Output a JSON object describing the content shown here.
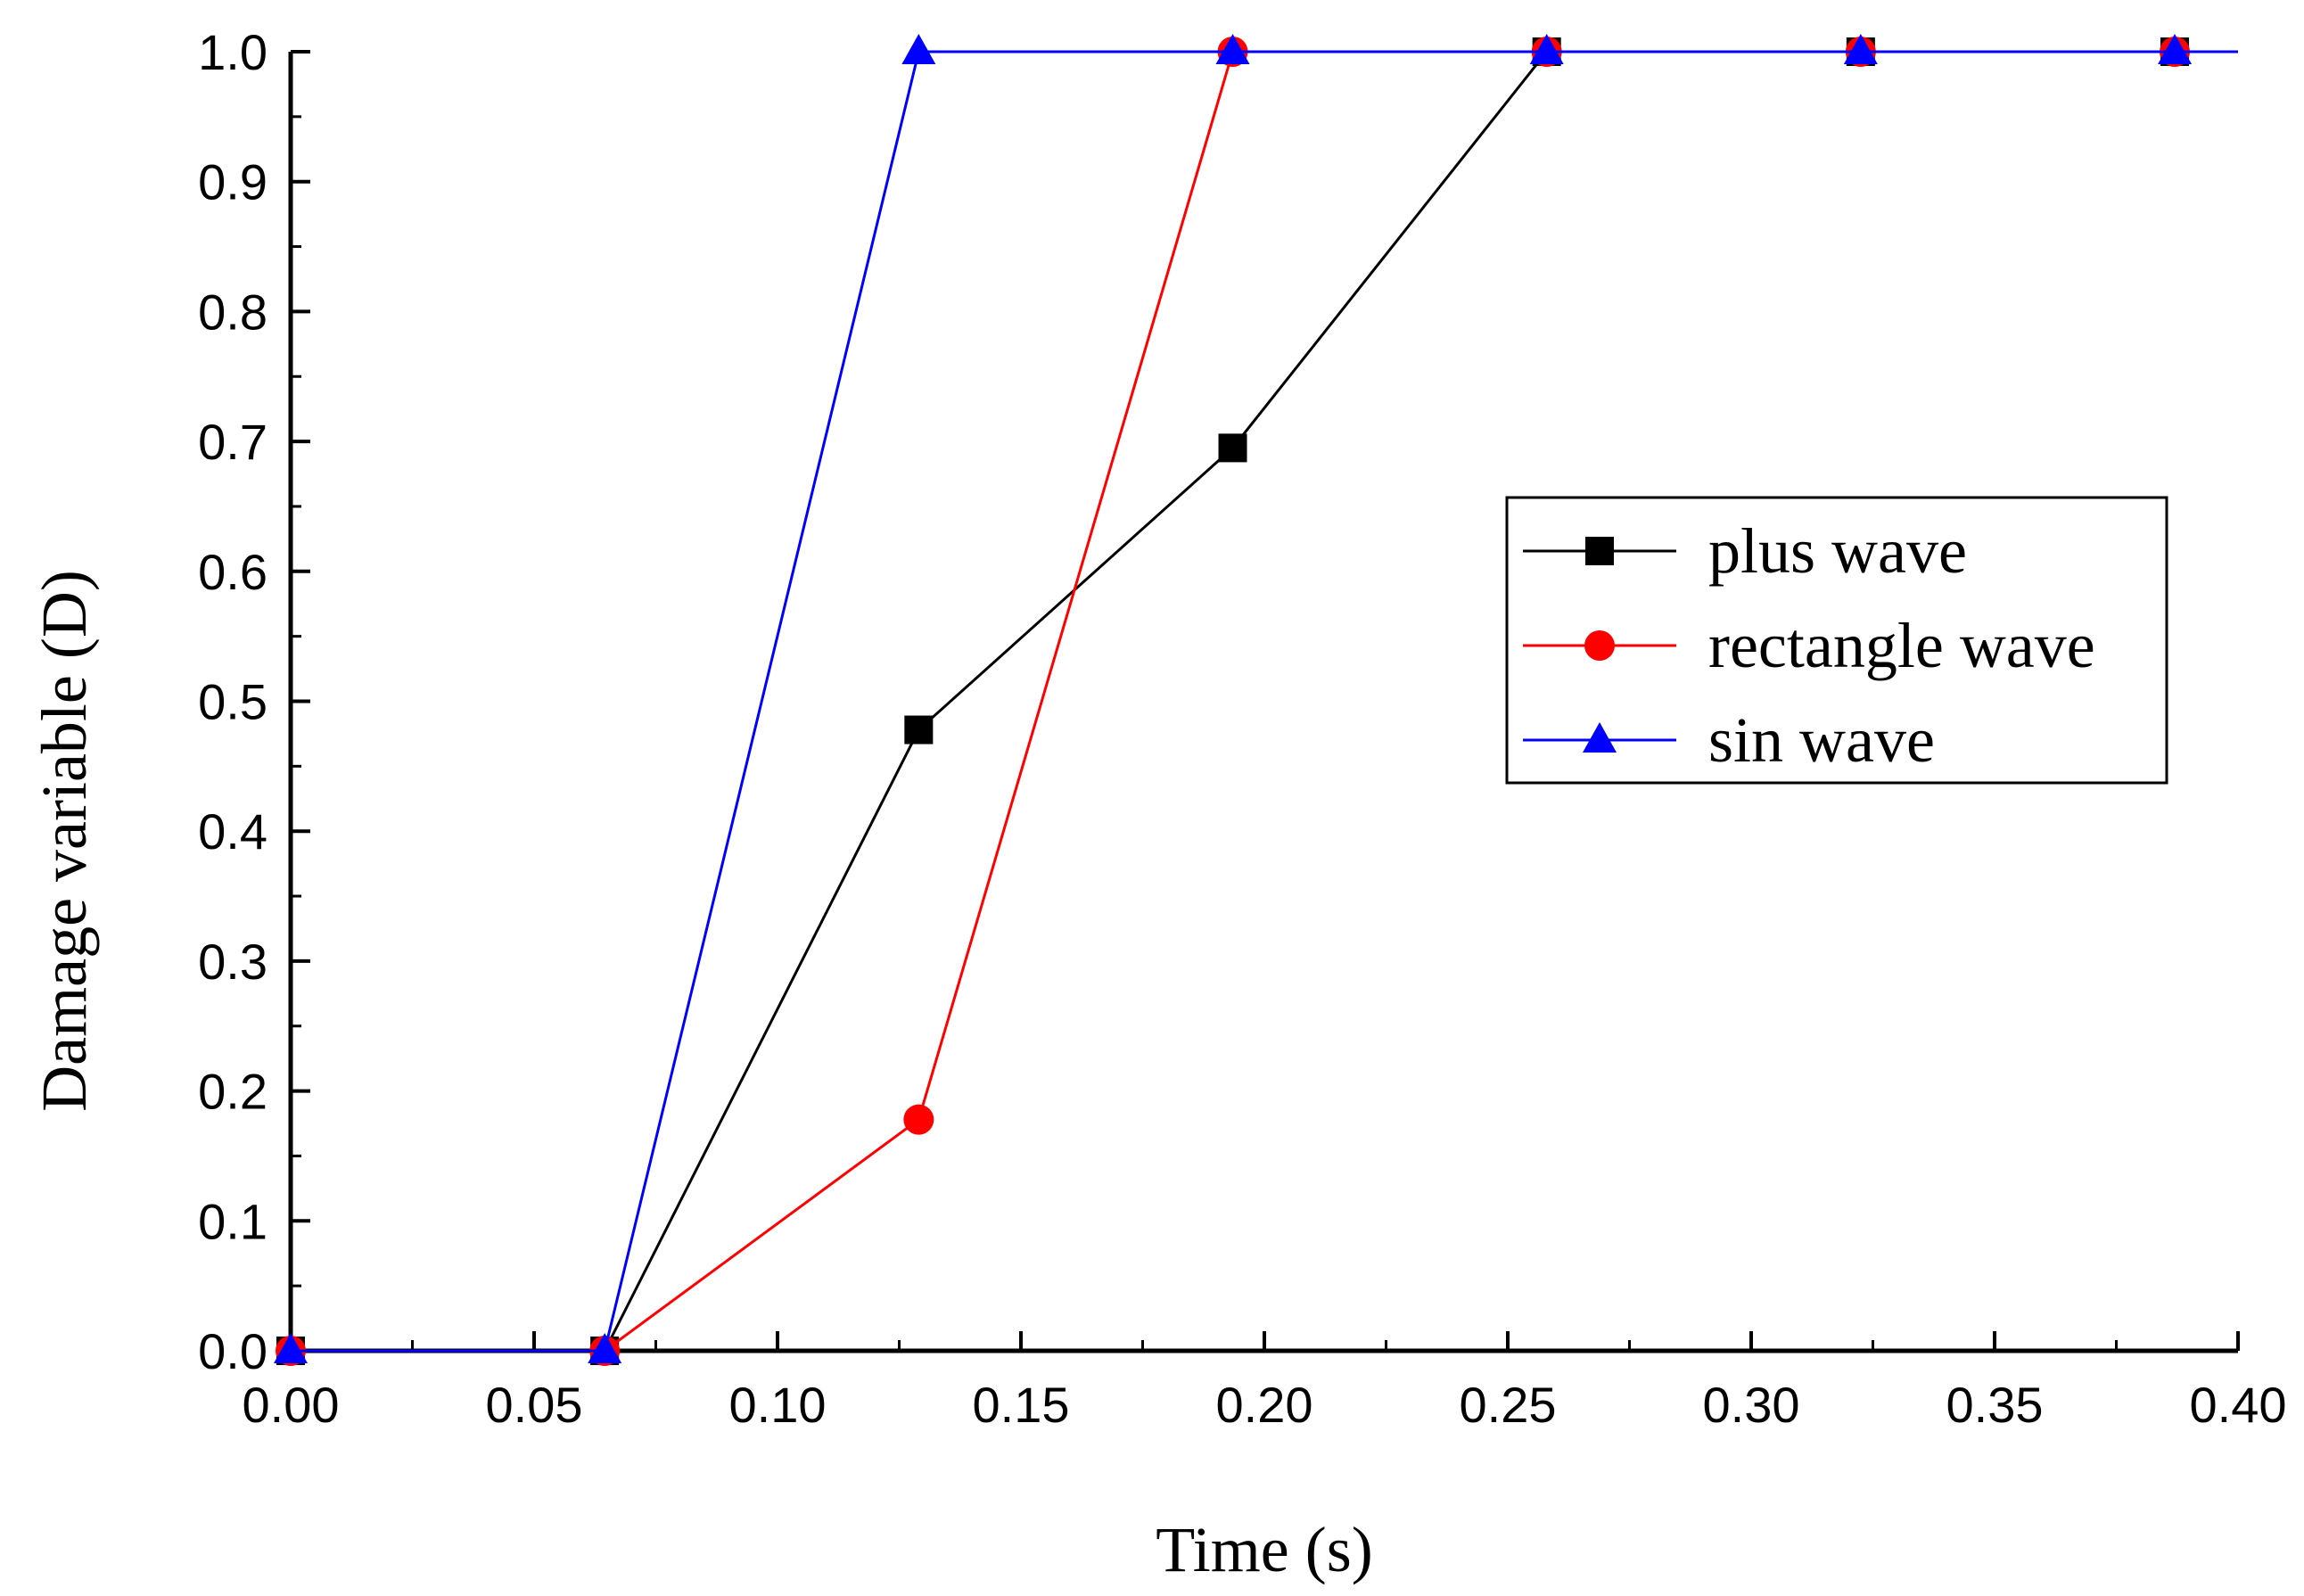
{
  "chart_data": {
    "type": "line",
    "title": "",
    "xlabel": "Time (s)",
    "ylabel": "Damage variable (D)",
    "xlim": [
      0.0,
      0.4
    ],
    "ylim": [
      0.0,
      1.0
    ],
    "x_ticks": [
      "0.00",
      "0.05",
      "0.10",
      "0.15",
      "0.20",
      "0.25",
      "0.30",
      "0.35",
      "0.40"
    ],
    "y_ticks": [
      "0.0",
      "0.1",
      "0.2",
      "0.3",
      "0.4",
      "0.5",
      "0.6",
      "0.7",
      "0.8",
      "0.9",
      "1.0"
    ],
    "grid": false,
    "legend_position": "right",
    "series": [
      {
        "name": "plus wave",
        "color": "#000000",
        "marker": "square",
        "x": [
          0.0,
          0.0645,
          0.129,
          0.1935,
          0.258,
          0.3225,
          0.387
        ],
        "y": [
          0.0,
          0.0,
          0.478,
          0.695,
          1.0,
          1.0,
          1.0
        ]
      },
      {
        "name": "rectangle wave",
        "color": "#ff0000",
        "marker": "circle",
        "x": [
          0.0,
          0.0645,
          0.129,
          0.1935,
          0.258,
          0.3225,
          0.387
        ],
        "y": [
          0.0,
          0.0,
          0.178,
          1.0,
          1.0,
          1.0,
          1.0
        ]
      },
      {
        "name": "sin wave",
        "color": "#0000ff",
        "marker": "triangle",
        "x": [
          0.0,
          0.0645,
          0.129,
          0.1935,
          0.258,
          0.3225,
          0.387
        ],
        "y": [
          0.0,
          0.0,
          1.0,
          1.0,
          1.0,
          1.0,
          1.0
        ]
      }
    ]
  }
}
